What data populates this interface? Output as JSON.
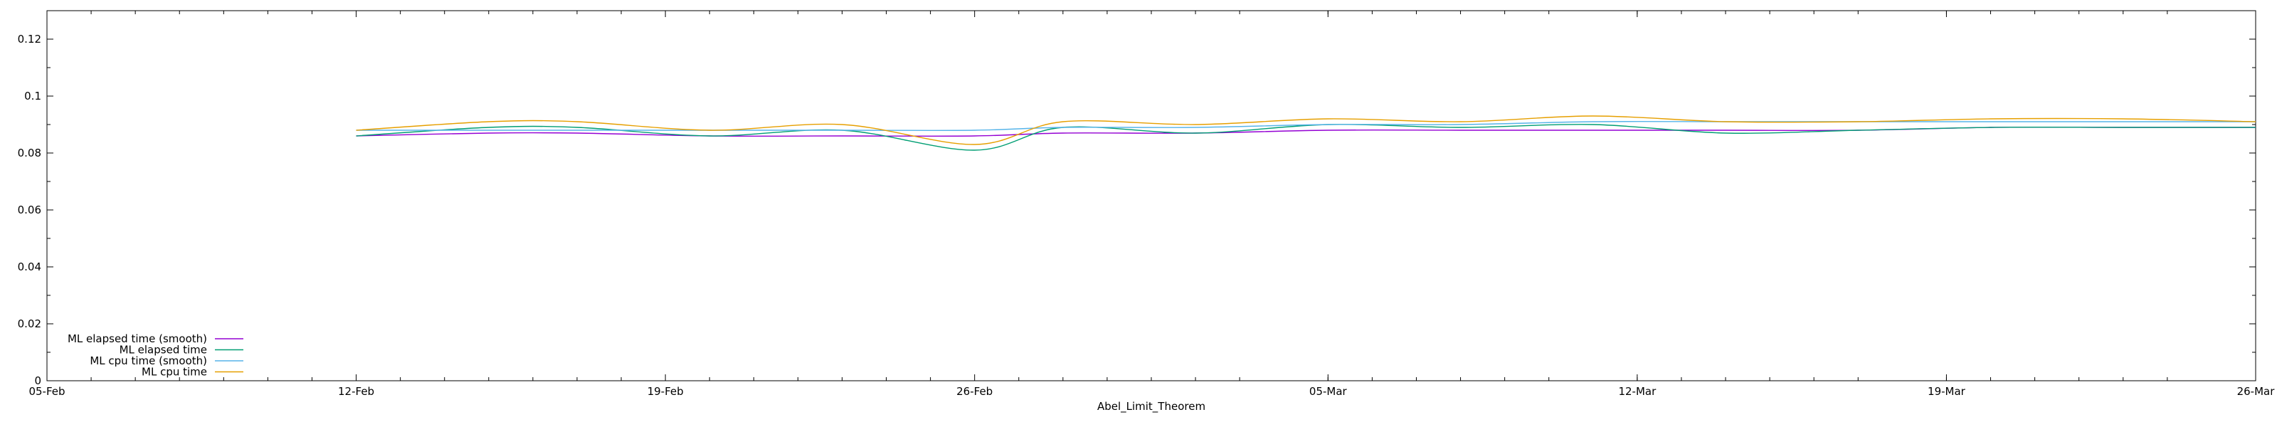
{
  "chart_data": {
    "type": "line",
    "title": "",
    "xlabel": "Abel_Limit_Theorem",
    "ylabel": "",
    "xlim": [
      "2024-02-05",
      "2024-03-26"
    ],
    "ylim": [
      0,
      0.13
    ],
    "x_ticks": [
      {
        "date": "2024-02-05",
        "label": "05-Feb"
      },
      {
        "date": "2024-02-12",
        "label": "12-Feb"
      },
      {
        "date": "2024-02-19",
        "label": "19-Feb"
      },
      {
        "date": "2024-02-26",
        "label": "26-Feb"
      },
      {
        "date": "2024-03-05",
        "label": "05-Mar"
      },
      {
        "date": "2024-03-12",
        "label": "12-Mar"
      },
      {
        "date": "2024-03-19",
        "label": "19-Mar"
      },
      {
        "date": "2024-03-26",
        "label": "26-Mar"
      }
    ],
    "y_ticks": [
      {
        "value": 0,
        "label": "0"
      },
      {
        "value": 0.02,
        "label": "0.02"
      },
      {
        "value": 0.04,
        "label": "0.04"
      },
      {
        "value": 0.06,
        "label": "0.06"
      },
      {
        "value": 0.08,
        "label": "0.08"
      },
      {
        "value": 0.1,
        "label": "0.1"
      },
      {
        "value": 0.12,
        "label": "0.12"
      }
    ],
    "grid": false,
    "legend_position": "bottom-left",
    "x": [
      "2024-02-12",
      "2024-02-15",
      "2024-02-17",
      "2024-02-20",
      "2024-02-23",
      "2024-02-26",
      "2024-02-28",
      "2024-03-02",
      "2024-03-05",
      "2024-03-08",
      "2024-03-11",
      "2024-03-14",
      "2024-03-17",
      "2024-03-20",
      "2024-03-23",
      "2024-03-26"
    ],
    "series": [
      {
        "name": "ML elapsed time (smooth)",
        "color": "#9400d3",
        "values": [
          0.086,
          0.087,
          0.087,
          0.086,
          0.086,
          0.086,
          0.087,
          0.087,
          0.088,
          0.088,
          0.088,
          0.088,
          0.088,
          0.089,
          0.089,
          0.089
        ]
      },
      {
        "name": "ML elapsed time",
        "color": "#009e73",
        "values": [
          0.086,
          0.089,
          0.089,
          0.086,
          0.088,
          0.081,
          0.089,
          0.087,
          0.09,
          0.089,
          0.09,
          0.087,
          0.088,
          0.089,
          0.089,
          0.089
        ]
      },
      {
        "name": "ML cpu time (smooth)",
        "color": "#56b4e9",
        "values": [
          0.088,
          0.088,
          0.088,
          0.088,
          0.088,
          0.088,
          0.089,
          0.089,
          0.09,
          0.09,
          0.091,
          0.091,
          0.091,
          0.091,
          0.091,
          0.091
        ]
      },
      {
        "name": "ML cpu time",
        "color": "#e69f00",
        "values": [
          0.088,
          0.091,
          0.091,
          0.088,
          0.09,
          0.083,
          0.091,
          0.09,
          0.092,
          0.091,
          0.093,
          0.091,
          0.091,
          0.092,
          0.092,
          0.091
        ]
      }
    ]
  }
}
